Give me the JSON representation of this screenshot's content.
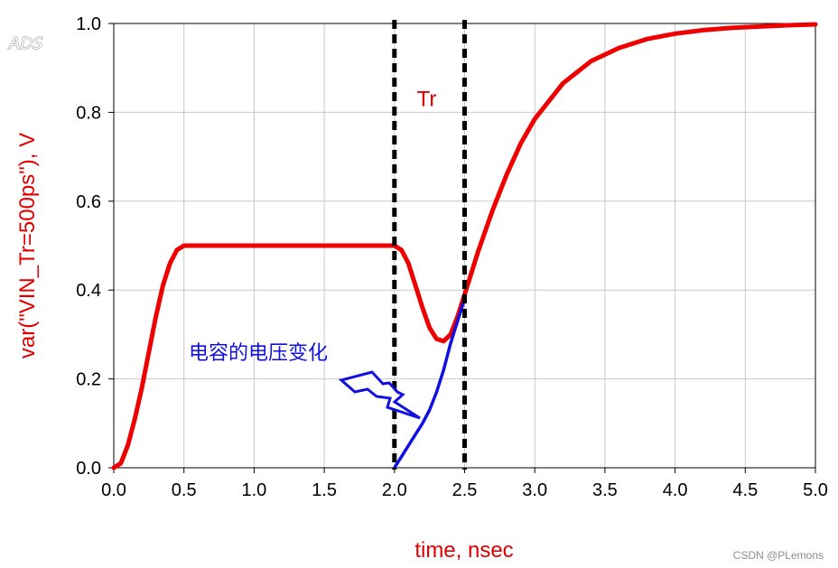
{
  "app": {
    "logo_text": "ADS"
  },
  "watermark": "CSDN @PLemons",
  "chart_data": {
    "type": "line",
    "title": "",
    "xlabel": "time, nsec",
    "ylabel": "var(\"VIN_Tr=500ps\"), V",
    "xlim": [
      0.0,
      5.0
    ],
    "ylim": [
      0.0,
      1.0
    ],
    "xticks": [
      "0.0",
      "0.5",
      "1.0",
      "1.5",
      "2.0",
      "2.5",
      "3.0",
      "3.5",
      "4.0",
      "4.5",
      "5.0"
    ],
    "yticks": [
      "0.0",
      "0.2",
      "0.4",
      "0.6",
      "0.8",
      "1.0"
    ],
    "grid": true,
    "series": [
      {
        "color": "#ee0000",
        "x": [
          0.0,
          0.05,
          0.1,
          0.15,
          0.2,
          0.25,
          0.3,
          0.35,
          0.4,
          0.45,
          0.5,
          1.0,
          1.5,
          2.0,
          2.05,
          2.1,
          2.15,
          2.2,
          2.25,
          2.3,
          2.35,
          2.4,
          2.45,
          2.5,
          2.6,
          2.7,
          2.8,
          2.9,
          3.0,
          3.2,
          3.4,
          3.6,
          3.8,
          4.0,
          4.2,
          4.4,
          4.6,
          4.8,
          5.0
        ],
        "y": [
          0.0,
          0.01,
          0.05,
          0.11,
          0.18,
          0.26,
          0.34,
          0.41,
          0.46,
          0.49,
          0.5,
          0.5,
          0.5,
          0.5,
          0.49,
          0.46,
          0.41,
          0.36,
          0.315,
          0.29,
          0.285,
          0.3,
          0.34,
          0.39,
          0.49,
          0.58,
          0.66,
          0.73,
          0.785,
          0.865,
          0.915,
          0.945,
          0.965,
          0.977,
          0.985,
          0.99,
          0.993,
          0.996,
          0.998
        ]
      },
      {
        "color": "#1010e0",
        "x": [
          2.0,
          2.05,
          2.1,
          2.15,
          2.2,
          2.25,
          2.3,
          2.35,
          2.4,
          2.45,
          2.5
        ],
        "y": [
          0.0,
          0.025,
          0.05,
          0.075,
          0.1,
          0.13,
          0.17,
          0.22,
          0.28,
          0.33,
          0.38
        ]
      }
    ],
    "markers": {
      "vlines_x": [
        2.0,
        2.5
      ],
      "color": "#000000",
      "style": "dashed"
    },
    "annotations": [
      {
        "text": "Tr",
        "x": 2.25,
        "y": 0.83,
        "color": "#e00000"
      },
      {
        "text": "电容的电压变化",
        "x": 1.35,
        "y": 0.26,
        "color": "#1010e0"
      }
    ]
  }
}
